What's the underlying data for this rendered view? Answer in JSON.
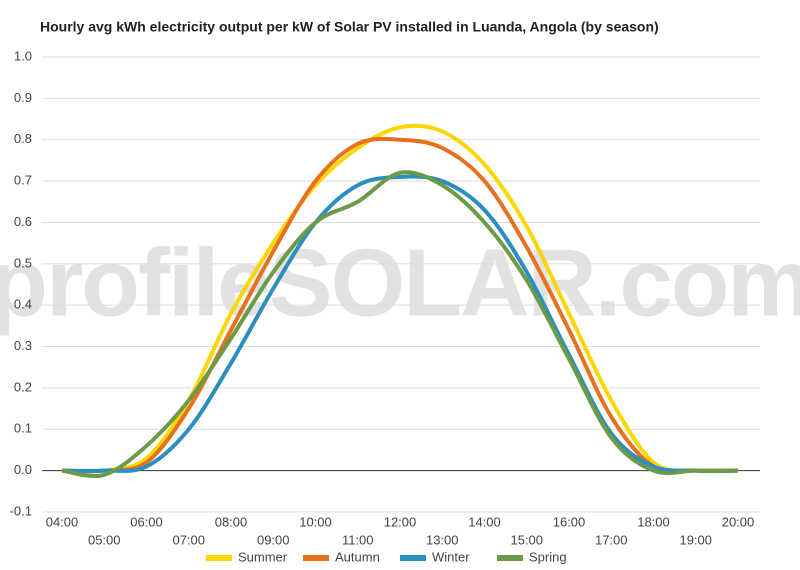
{
  "chart_data": {
    "type": "line",
    "title": "Hourly avg kWh electricity output per kW of Solar PV installed in Luanda, Angola (by season)",
    "watermark": "profileSOLAR.com",
    "categories": [
      "04:00",
      "05:00",
      "06:00",
      "07:00",
      "08:00",
      "09:00",
      "10:00",
      "11:00",
      "12:00",
      "13:00",
      "14:00",
      "15:00",
      "16:00",
      "17:00",
      "18:00",
      "19:00",
      "20:00"
    ],
    "series": [
      {
        "name": "Summer",
        "color": "#fcd600",
        "values": [
          0,
          0,
          0.03,
          0.17,
          0.38,
          0.55,
          0.69,
          0.78,
          0.83,
          0.82,
          0.74,
          0.59,
          0.38,
          0.17,
          0.02,
          0,
          0
        ]
      },
      {
        "name": "Autumn",
        "color": "#e6711e",
        "values": [
          0,
          0,
          0.02,
          0.15,
          0.34,
          0.53,
          0.7,
          0.79,
          0.8,
          0.78,
          0.7,
          0.54,
          0.34,
          0.13,
          0.01,
          0,
          0
        ]
      },
      {
        "name": "Winter",
        "color": "#2b8ec0",
        "values": [
          0,
          0,
          0.01,
          0.1,
          0.26,
          0.44,
          0.6,
          0.69,
          0.71,
          0.7,
          0.63,
          0.48,
          0.28,
          0.09,
          0.01,
          0,
          0
        ]
      },
      {
        "name": "Spring",
        "color": "#6b9a48",
        "values": [
          0,
          -0.01,
          0.06,
          0.17,
          0.32,
          0.48,
          0.6,
          0.65,
          0.72,
          0.69,
          0.6,
          0.46,
          0.27,
          0.08,
          0,
          0,
          0
        ]
      }
    ],
    "ylim": [
      -0.1,
      1.0
    ],
    "yticks": [
      -0.1,
      {
        "value": 0,
        "label": "0.0"
      },
      0.1,
      0.2,
      0.3,
      0.4,
      0.5,
      0.6,
      0.7,
      0.8,
      0.9,
      {
        "value": 1,
        "label": "1.0"
      }
    ],
    "grid": true,
    "legend": "bottom"
  }
}
